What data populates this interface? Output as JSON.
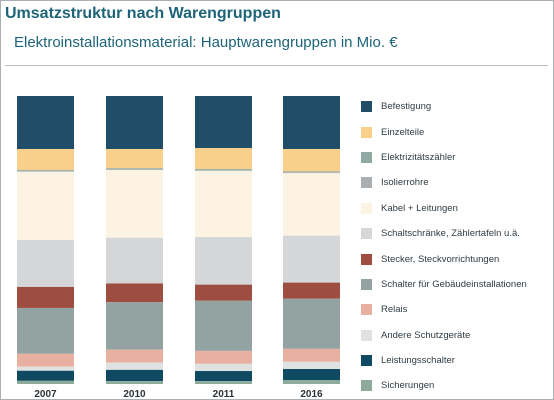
{
  "page": {
    "title": "Umsatzstruktur nach Warengruppen",
    "subtitle": "Elektroinstallationsmaterial: Hauptwarengruppen in Mio. €"
  },
  "chart_data": {
    "type": "bar",
    "stacked": true,
    "percent_stacked": true,
    "categories": [
      "2007",
      "2010",
      "2011",
      "2016"
    ],
    "legend_position": "right",
    "grid": false,
    "series": [
      {
        "name": "Befestigung",
        "color": "#204e69",
        "values": [
          18.4,
          18.4,
          18.1,
          18.4
        ]
      },
      {
        "name": "Einzelteile",
        "color": "#f8cf8b",
        "values": [
          7.3,
          6.7,
          7.3,
          7.8
        ]
      },
      {
        "name": "Elektrizitätszähler",
        "color": "#8eaaa3",
        "values": [
          0.3,
          0.3,
          0.3,
          0.3
        ]
      },
      {
        "name": "Isolierrohre",
        "color": "#aaaeb1",
        "values": [
          0.3,
          0.3,
          0.3,
          0.3
        ]
      },
      {
        "name": "Kabel + Leitungen",
        "color": "#fdf3e2",
        "values": [
          23.7,
          23.5,
          23.0,
          21.7
        ]
      },
      {
        "name": "Schaltschränke, Zählertafeln u.ä.",
        "color": "#d4d6d8",
        "values": [
          16.3,
          15.9,
          16.5,
          16.3
        ]
      },
      {
        "name": "Stecker, Steckvorrichtungen",
        "color": "#9e4e41",
        "values": [
          7.3,
          6.5,
          5.6,
          5.6
        ]
      },
      {
        "name": "Schalter für Gebäudeinstallationen",
        "color": "#93a3a1",
        "values": [
          15.9,
          16.5,
          17.4,
          17.4
        ]
      },
      {
        "name": "Relais",
        "color": "#e8b0a0",
        "values": [
          4.5,
          4.5,
          4.5,
          4.5
        ]
      },
      {
        "name": "Andere Schutzgeräte",
        "color": "#e0e2e2",
        "values": [
          1.4,
          2.5,
          2.5,
          2.5
        ]
      },
      {
        "name": "Leistungsschalter",
        "color": "#0f4a62",
        "values": [
          3.5,
          3.9,
          3.5,
          3.9
        ]
      },
      {
        "name": "Sicherungen",
        "color": "#8daa9b",
        "values": [
          1.1,
          1.0,
          1.0,
          1.3
        ]
      }
    ]
  }
}
